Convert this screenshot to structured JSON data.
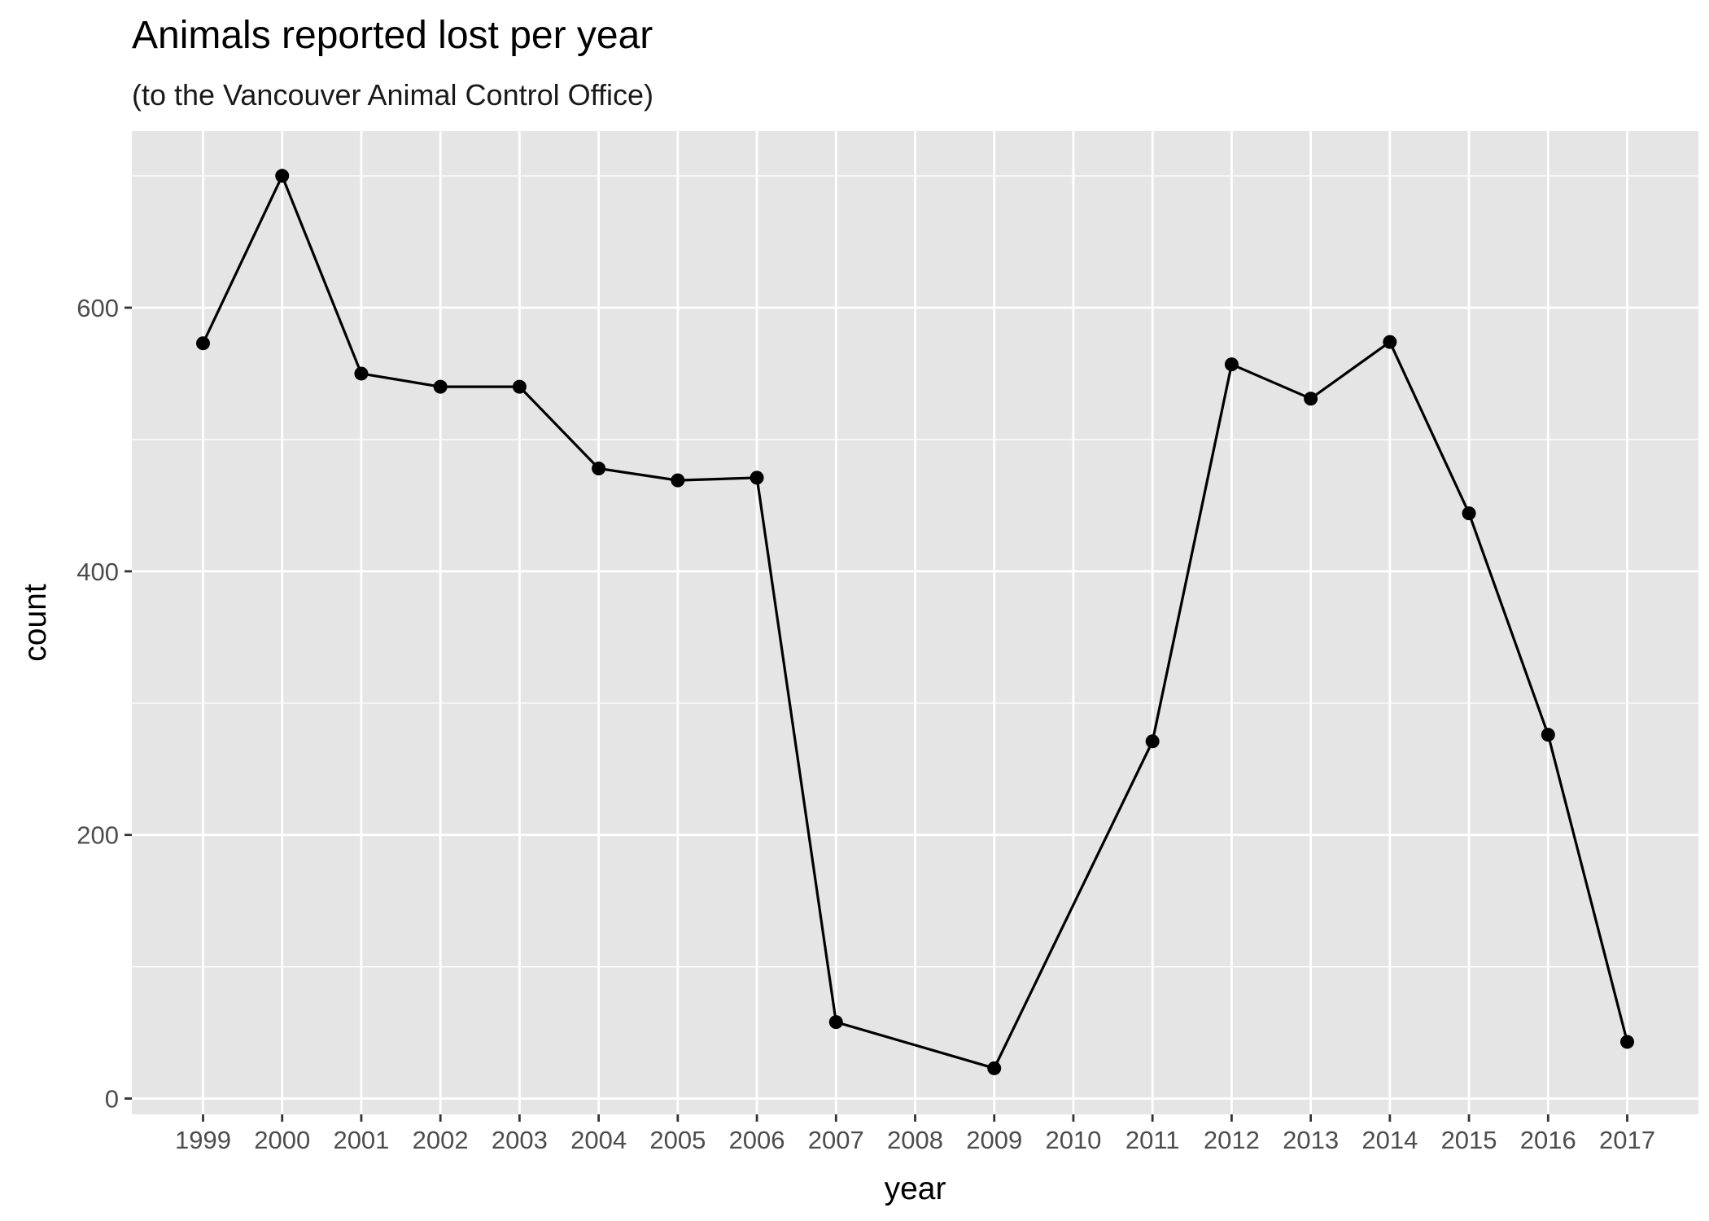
{
  "chart_data": {
    "type": "line",
    "title": "Animals reported lost per year",
    "subtitle": "(to the Vancouver Animal Control Office)",
    "xlabel": "year",
    "ylabel": "count",
    "x": [
      "1999",
      "2000",
      "2001",
      "2002",
      "2003",
      "2004",
      "2005",
      "2006",
      "2007",
      "2009",
      "2011",
      "2012",
      "2013",
      "2014",
      "2015",
      "2016",
      "2017"
    ],
    "values": [
      573,
      700,
      550,
      540,
      540,
      478,
      469,
      471,
      58,
      23,
      271,
      557,
      531,
      574,
      444,
      276,
      43
    ],
    "x_ticks": [
      "1999",
      "2000",
      "2001",
      "2002",
      "2003",
      "2004",
      "2005",
      "2006",
      "2007",
      "2008",
      "2009",
      "2010",
      "2011",
      "2012",
      "2013",
      "2014",
      "2015",
      "2016",
      "2017"
    ],
    "y_ticks": [
      0,
      200,
      400,
      600
    ],
    "xlim": [
      1998.1,
      2017.9
    ],
    "ylim": [
      -12,
      734
    ],
    "grid": true,
    "colors": {
      "panel": "#e5e5e5",
      "grid": "#ffffff",
      "line": "#000000",
      "point": "#000000"
    }
  }
}
